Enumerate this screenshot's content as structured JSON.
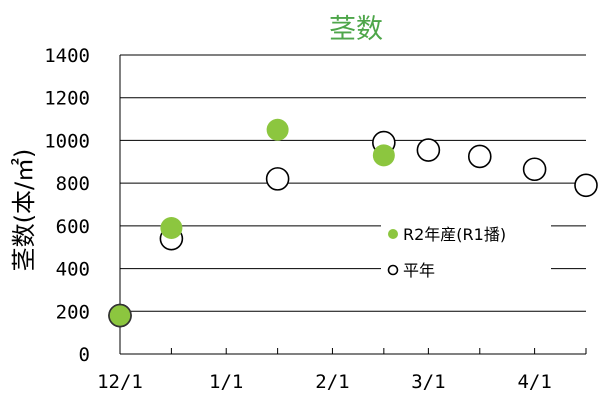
{
  "chart_data": {
    "type": "scatter",
    "title": "茎数",
    "ylabel": "茎数(本/㎡)",
    "xlabel": "",
    "ylim": [
      0,
      1400
    ],
    "xlim": [
      "12/1",
      "4/16"
    ],
    "grid": true,
    "legend_position": "right",
    "x_ticks": [
      "12/1",
      "1/1",
      "2/1",
      "3/1",
      "4/1"
    ],
    "y_ticks": [
      "0",
      "200",
      "400",
      "600",
      "800",
      "1000",
      "1200",
      "1400"
    ],
    "series": [
      {
        "name": "R2年産(R1播)",
        "color": "#8cc63f",
        "marker": "filled-circle",
        "points": [
          {
            "x": "12/1",
            "y": 180
          },
          {
            "x": "12/16",
            "y": 590
          },
          {
            "x": "1/16",
            "y": 1050
          },
          {
            "x": "2/16",
            "y": 930
          }
        ]
      },
      {
        "name": "平年",
        "color": "#000000",
        "marker": "open-circle",
        "points": [
          {
            "x": "12/1",
            "y": 180
          },
          {
            "x": "12/16",
            "y": 540
          },
          {
            "x": "1/16",
            "y": 820
          },
          {
            "x": "2/16",
            "y": 990
          },
          {
            "x": "3/1",
            "y": 955
          },
          {
            "x": "3/16",
            "y": 925
          },
          {
            "x": "4/1",
            "y": 865
          },
          {
            "x": "4/16",
            "y": 790
          }
        ]
      }
    ]
  }
}
